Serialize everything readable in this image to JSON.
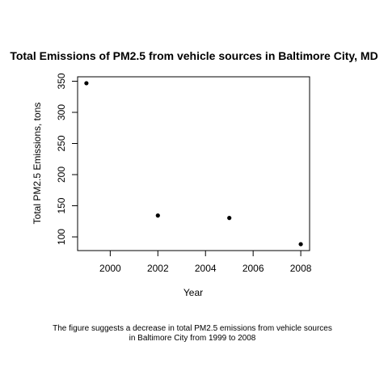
{
  "chart_data": {
    "type": "scatter",
    "title": "Total Emissions of PM2.5 from vehicle sources in Baltimore City, MD",
    "xlabel": "Year",
    "ylabel": "Total PM2.5 Emissions, tons",
    "x": [
      1999,
      2002,
      2005,
      2008
    ],
    "y": [
      346.82,
      134.31,
      130.43,
      88.28
    ],
    "xlim": [
      1998.63,
      2008.37
    ],
    "ylim": [
      78.0,
      357.1
    ],
    "xticks": [
      "2000",
      "2002",
      "2004",
      "2006",
      "2008"
    ],
    "yticks": [
      "100",
      "150",
      "200",
      "250",
      "300",
      "350"
    ],
    "grid": false,
    "legend": "none",
    "point_color": "#000000"
  },
  "caption": {
    "line1": "The figure suggests a decrease in total PM2.5 emissions from vehicle sources",
    "line2": "in Baltimore City from 1999 to 2008"
  }
}
